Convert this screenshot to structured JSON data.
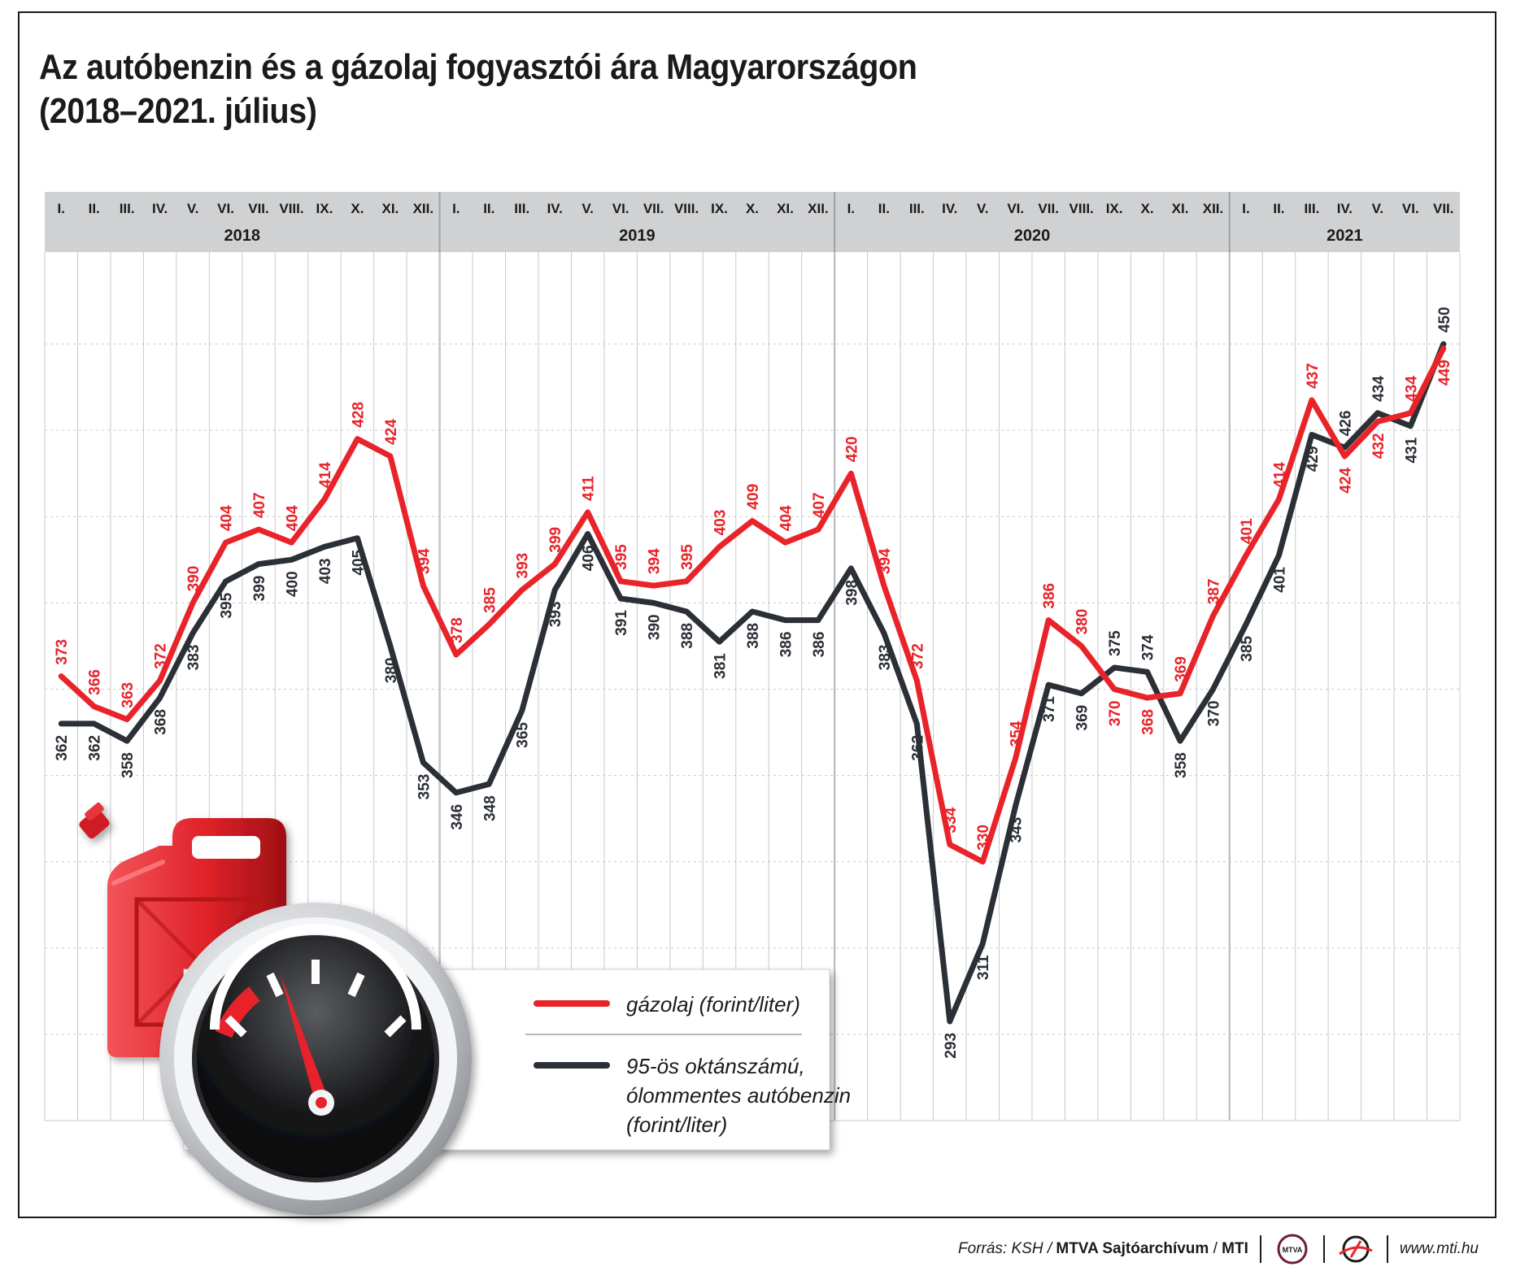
{
  "title_line1": "Az autóbenzin és a gázolaj fogyasztói ára Magyarországon",
  "title_line2": "(2018–2021. július)",
  "chart_data": {
    "type": "line",
    "title": "Az autóbenzin és a gázolaj fogyasztói ára Magyarországon (2018–2021. július)",
    "month_labels": [
      "I.",
      "II.",
      "III.",
      "IV.",
      "V.",
      "VI.",
      "VII.",
      "VIII.",
      "IX.",
      "X.",
      "XI.",
      "XII."
    ],
    "years": [
      {
        "label": "2018",
        "months": 12
      },
      {
        "label": "2019",
        "months": 12
      },
      {
        "label": "2020",
        "months": 12
      },
      {
        "label": "2021",
        "months": 7
      }
    ],
    "ylim": [
      270,
      460
    ],
    "grid": true,
    "legend_position": "bottom-center",
    "series": [
      {
        "name": "gázolaj (forint/liter)",
        "color": "#e8232a",
        "values": [
          373,
          366,
          363,
          372,
          390,
          404,
          407,
          404,
          414,
          428,
          424,
          394,
          378,
          385,
          393,
          399,
          411,
          395,
          394,
          395,
          403,
          409,
          404,
          407,
          420,
          394,
          372,
          334,
          330,
          354,
          386,
          380,
          370,
          368,
          369,
          387,
          401,
          414,
          437,
          424,
          432,
          434,
          449
        ]
      },
      {
        "name": "95-ös oktánszámú, ólommentes autóbenzin (forint/liter)",
        "color": "#2b2f36",
        "values": [
          362,
          362,
          358,
          368,
          383,
          395,
          399,
          400,
          403,
          405,
          380,
          353,
          346,
          348,
          365,
          393,
          406,
          391,
          390,
          388,
          381,
          388,
          386,
          386,
          398,
          383,
          362,
          293,
          311,
          343,
          371,
          369,
          375,
          374,
          358,
          370,
          385,
          401,
          429,
          426,
          434,
          431,
          450
        ]
      }
    ]
  },
  "legend": {
    "diesel_label": "gázolaj (forint/liter)",
    "petrol_label_lines": [
      "95-ös oktánszámú,",
      "ólommentes autóbenzin",
      "(forint/liter)"
    ]
  },
  "footer": {
    "source_prefix": "Forrás: KSH /",
    "source_archive": "MTVA Sajtóarchívum",
    "source_sep": "/",
    "source_agency": "MTI",
    "logo_text": "MTVA",
    "website": "www.mti.hu"
  },
  "colors": {
    "diesel": "#e8232a",
    "petrol": "#2b2f36",
    "header_band": "#d0d1d3"
  },
  "icons": [
    "jerry-can-icon",
    "fuel-gauge-icon",
    "mtva-logo-icon",
    "mti-logo-icon"
  ]
}
